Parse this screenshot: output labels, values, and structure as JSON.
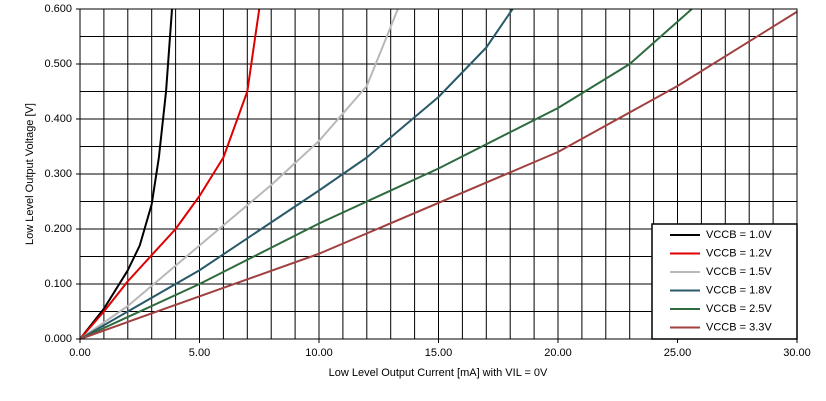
{
  "chart_data": {
    "type": "line",
    "x_label": "Low Level Output Current [mA] with VIL = 0V",
    "y_label": "Low Level Output Voltage [V]",
    "xlim": [
      0,
      30
    ],
    "ylim": [
      0,
      0.6
    ],
    "xticks": [
      {
        "value": 0,
        "label": "0.00"
      },
      {
        "value": 5,
        "label": "5.00"
      },
      {
        "value": 10,
        "label": "10.00"
      },
      {
        "value": 15,
        "label": "15.00"
      },
      {
        "value": 20,
        "label": "20.00"
      },
      {
        "value": 25,
        "label": "25.00"
      },
      {
        "value": 30,
        "label": "30.00"
      }
    ],
    "yticks": [
      {
        "value": 0,
        "label": "0.000"
      },
      {
        "value": 0.1,
        "label": "0.100"
      },
      {
        "value": 0.2,
        "label": "0.200"
      },
      {
        "value": 0.3,
        "label": "0.300"
      },
      {
        "value": 0.4,
        "label": "0.400"
      },
      {
        "value": 0.5,
        "label": "0.500"
      },
      {
        "value": 0.6,
        "label": "0.600"
      }
    ],
    "x_minor_grid": [
      0,
      1,
      2,
      3,
      4,
      5,
      6,
      7,
      8,
      9,
      10,
      11,
      12,
      13,
      14,
      15,
      16,
      17,
      18,
      19,
      20,
      21,
      22,
      23,
      24,
      25,
      26,
      27,
      28,
      29,
      30
    ],
    "y_minor_grid": [
      0,
      0.05,
      0.1,
      0.15,
      0.2,
      0.25,
      0.3,
      0.35,
      0.4,
      0.45,
      0.5,
      0.55,
      0.6
    ],
    "grid": true,
    "legend": "lower right",
    "series": [
      {
        "name": "VCCB = 1.0V",
        "color": "#000000",
        "x": [
          0,
          1,
          2,
          2.5,
          3,
          3.3,
          3.6,
          3.85
        ],
        "values": [
          0,
          0.055,
          0.125,
          0.17,
          0.245,
          0.33,
          0.45,
          0.6
        ]
      },
      {
        "name": "VCCB = 1.2V",
        "color": "#e00000",
        "x": [
          0,
          1,
          2,
          4,
          5,
          6,
          7,
          7.5
        ],
        "values": [
          0,
          0.05,
          0.105,
          0.2,
          0.26,
          0.33,
          0.45,
          0.6
        ]
      },
      {
        "name": "VCCB = 1.5V",
        "color": "#b8b8b8",
        "x": [
          0,
          2,
          5,
          8,
          10,
          12,
          13.3
        ],
        "values": [
          0,
          0.06,
          0.17,
          0.28,
          0.36,
          0.46,
          0.6
        ]
      },
      {
        "name": "VCCB = 1.8V",
        "color": "#2a5a6a",
        "x": [
          0,
          5,
          10,
          12,
          15,
          17,
          18.1
        ],
        "values": [
          0,
          0.125,
          0.27,
          0.33,
          0.44,
          0.53,
          0.6
        ]
      },
      {
        "name": "VCCB = 2.5V",
        "color": "#2e6b3e",
        "x": [
          0,
          5,
          10,
          15,
          20,
          23,
          25.6
        ],
        "values": [
          0,
          0.1,
          0.21,
          0.31,
          0.42,
          0.5,
          0.6
        ]
      },
      {
        "name": "VCCB = 3.3V",
        "color": "#a04040",
        "x": [
          0,
          10,
          20,
          25,
          30
        ],
        "values": [
          0,
          0.155,
          0.34,
          0.46,
          0.595
        ]
      }
    ]
  }
}
